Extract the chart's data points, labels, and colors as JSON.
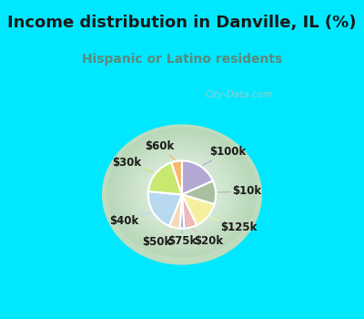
{
  "title": "Income distribution in Danville, IL (%)",
  "subtitle": "Hispanic or Latino residents",
  "watermark": "City-Data.com",
  "slices": [
    {
      "label": "$100k",
      "value": 18,
      "color": "#b3a8d4"
    },
    {
      "label": "$10k",
      "value": 11,
      "color": "#a8bfa0"
    },
    {
      "label": "$125k",
      "value": 13,
      "color": "#f5f0a0"
    },
    {
      "label": "$20k",
      "value": 6,
      "color": "#f0b8b8"
    },
    {
      "label": "$75k",
      "value": 2,
      "color": "#9ab8e8"
    },
    {
      "label": "$50k",
      "value": 5,
      "color": "#f5d8b8"
    },
    {
      "label": "$40k",
      "value": 20,
      "color": "#b8d8f0"
    },
    {
      "label": "$30k",
      "value": 18,
      "color": "#c8e870"
    },
    {
      "label": "$60k",
      "value": 5,
      "color": "#f5b870"
    }
  ],
  "top_bg": "#00e8ff",
  "cyan_border": "#00e8ff",
  "chart_bg_center": "#f0faf0",
  "chart_bg_edge": "#c8e8c8",
  "title_color": "#1a1a1a",
  "subtitle_color": "#5a8a7a",
  "label_color": "#1a1a1a",
  "watermark_color": "#b0c8c8",
  "label_fontsize": 8.5,
  "title_fontsize": 13,
  "subtitle_fontsize": 10
}
